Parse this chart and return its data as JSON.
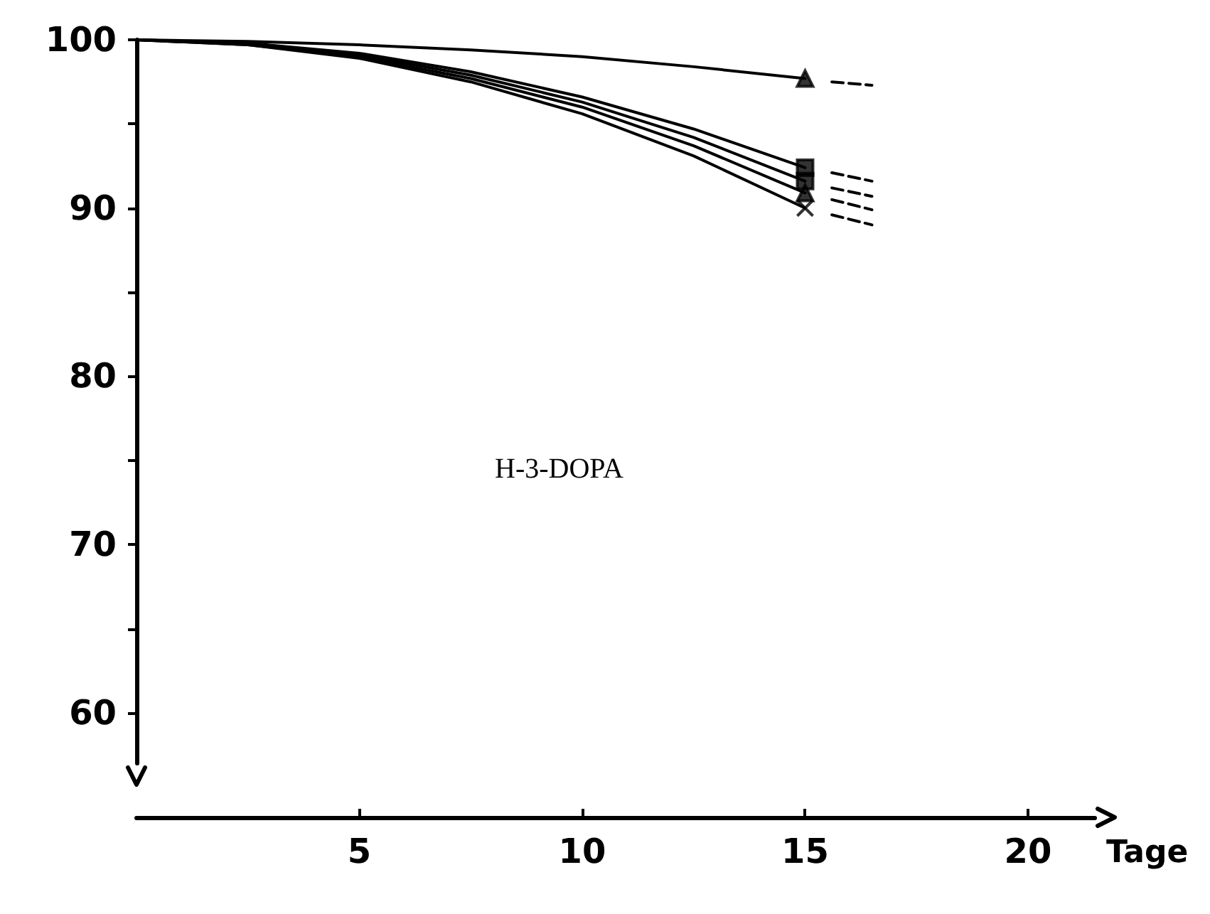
{
  "chart_data": {
    "type": "line",
    "xlabel": "Tage",
    "annotations": [
      "H-3-DOPA"
    ],
    "xlim": [
      0,
      21.5
    ],
    "xticks": [
      5,
      10,
      15,
      20
    ],
    "ylim": [
      57,
      100
    ],
    "yticks": [
      60,
      {
        "value": 65,
        "label": null
      },
      70,
      {
        "value": 75,
        "label": null
      },
      80,
      {
        "value": 85,
        "label": null
      },
      90,
      {
        "value": 95,
        "label": null
      },
      100
    ],
    "grid": false,
    "series": [
      {
        "color": "#000000",
        "marker": "none",
        "line_style": "solid",
        "x": [
          0,
          2.5,
          5,
          7.5,
          10,
          12.5,
          15
        ],
        "values": [
          100,
          99.9,
          99.7,
          99.4,
          99.0,
          98.4,
          97.7
        ]
      },
      {
        "color": "#000000",
        "marker": "none",
        "line_style": "solid",
        "x": [
          0,
          2.5,
          5,
          7.5,
          10,
          12.5,
          15
        ],
        "values": [
          100,
          99.8,
          99.2,
          98.1,
          96.6,
          94.7,
          92.4
        ]
      },
      {
        "color": "#000000",
        "marker": "none",
        "line_style": "solid",
        "x": [
          0,
          2.5,
          5,
          7.5,
          10,
          12.5,
          15
        ],
        "values": [
          100,
          99.8,
          99.1,
          97.9,
          96.3,
          94.2,
          91.6
        ]
      },
      {
        "color": "#000000",
        "marker": "none",
        "line_style": "solid",
        "x": [
          0,
          2.5,
          5,
          7.5,
          10,
          12.5,
          15
        ],
        "values": [
          100,
          99.7,
          99.0,
          97.7,
          96.0,
          93.7,
          90.9
        ]
      },
      {
        "color": "#000000",
        "marker": "none",
        "line_style": "solid",
        "x": [
          0,
          2.5,
          5,
          7.5,
          10,
          12.5,
          15
        ],
        "values": [
          100,
          99.7,
          98.9,
          97.5,
          95.6,
          93.1,
          90.0
        ]
      },
      {
        "color": "#000000",
        "marker": "none",
        "line_style": "dashed",
        "x": [
          15.6,
          16.5
        ],
        "values": [
          97.5,
          97.3
        ]
      },
      {
        "color": "#000000",
        "marker": "none",
        "line_style": "dashed",
        "x": [
          15.6,
          16.5
        ],
        "values": [
          92.1,
          91.6
        ]
      },
      {
        "color": "#000000",
        "marker": "none",
        "line_style": "dashed",
        "x": [
          15.6,
          16.5
        ],
        "values": [
          91.2,
          90.7
        ]
      },
      {
        "color": "#000000",
        "marker": "none",
        "line_style": "dashed",
        "x": [
          15.6,
          16.5
        ],
        "values": [
          90.5,
          89.9
        ]
      },
      {
        "color": "#000000",
        "marker": "none",
        "line_style": "dashed",
        "x": [
          15.6,
          16.5
        ],
        "values": [
          89.6,
          89.0
        ]
      },
      {
        "type": "scatter",
        "color": "#000000",
        "marker": "triangle",
        "x": [
          15
        ],
        "values": [
          97.7
        ]
      },
      {
        "type": "scatter",
        "color": "#000000",
        "marker": "square",
        "x": [
          15
        ],
        "values": [
          92.4
        ]
      },
      {
        "type": "scatter",
        "color": "#000000",
        "marker": "square",
        "x": [
          15
        ],
        "values": [
          91.6
        ]
      },
      {
        "type": "scatter",
        "color": "#000000",
        "marker": "triangle",
        "x": [
          15
        ],
        "values": [
          90.9
        ]
      },
      {
        "type": "scatter",
        "color": "#000000",
        "marker": "cross",
        "x": [
          15
        ],
        "values": [
          90.0
        ]
      }
    ]
  }
}
